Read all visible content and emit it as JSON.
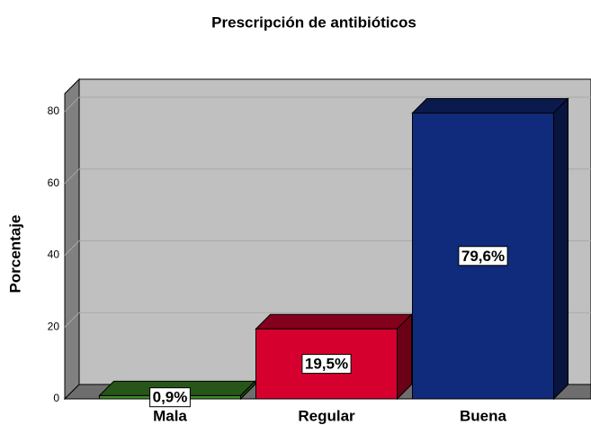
{
  "chart_data": {
    "type": "bar3d",
    "title": "Prescripción de antibióticos",
    "ylabel": "Porcentaje",
    "categories": [
      "Mala",
      "Regular",
      "Buena"
    ],
    "values": [
      0.9,
      19.5,
      79.6
    ],
    "value_labels": [
      "0,9%",
      "19,5%",
      "79,6%"
    ],
    "colors": [
      "#3f8a27",
      "#d6002e",
      "#102a7c"
    ],
    "ylim": [
      0,
      85
    ],
    "yticks": [
      0,
      20,
      40,
      60,
      80
    ],
    "grid": true
  }
}
